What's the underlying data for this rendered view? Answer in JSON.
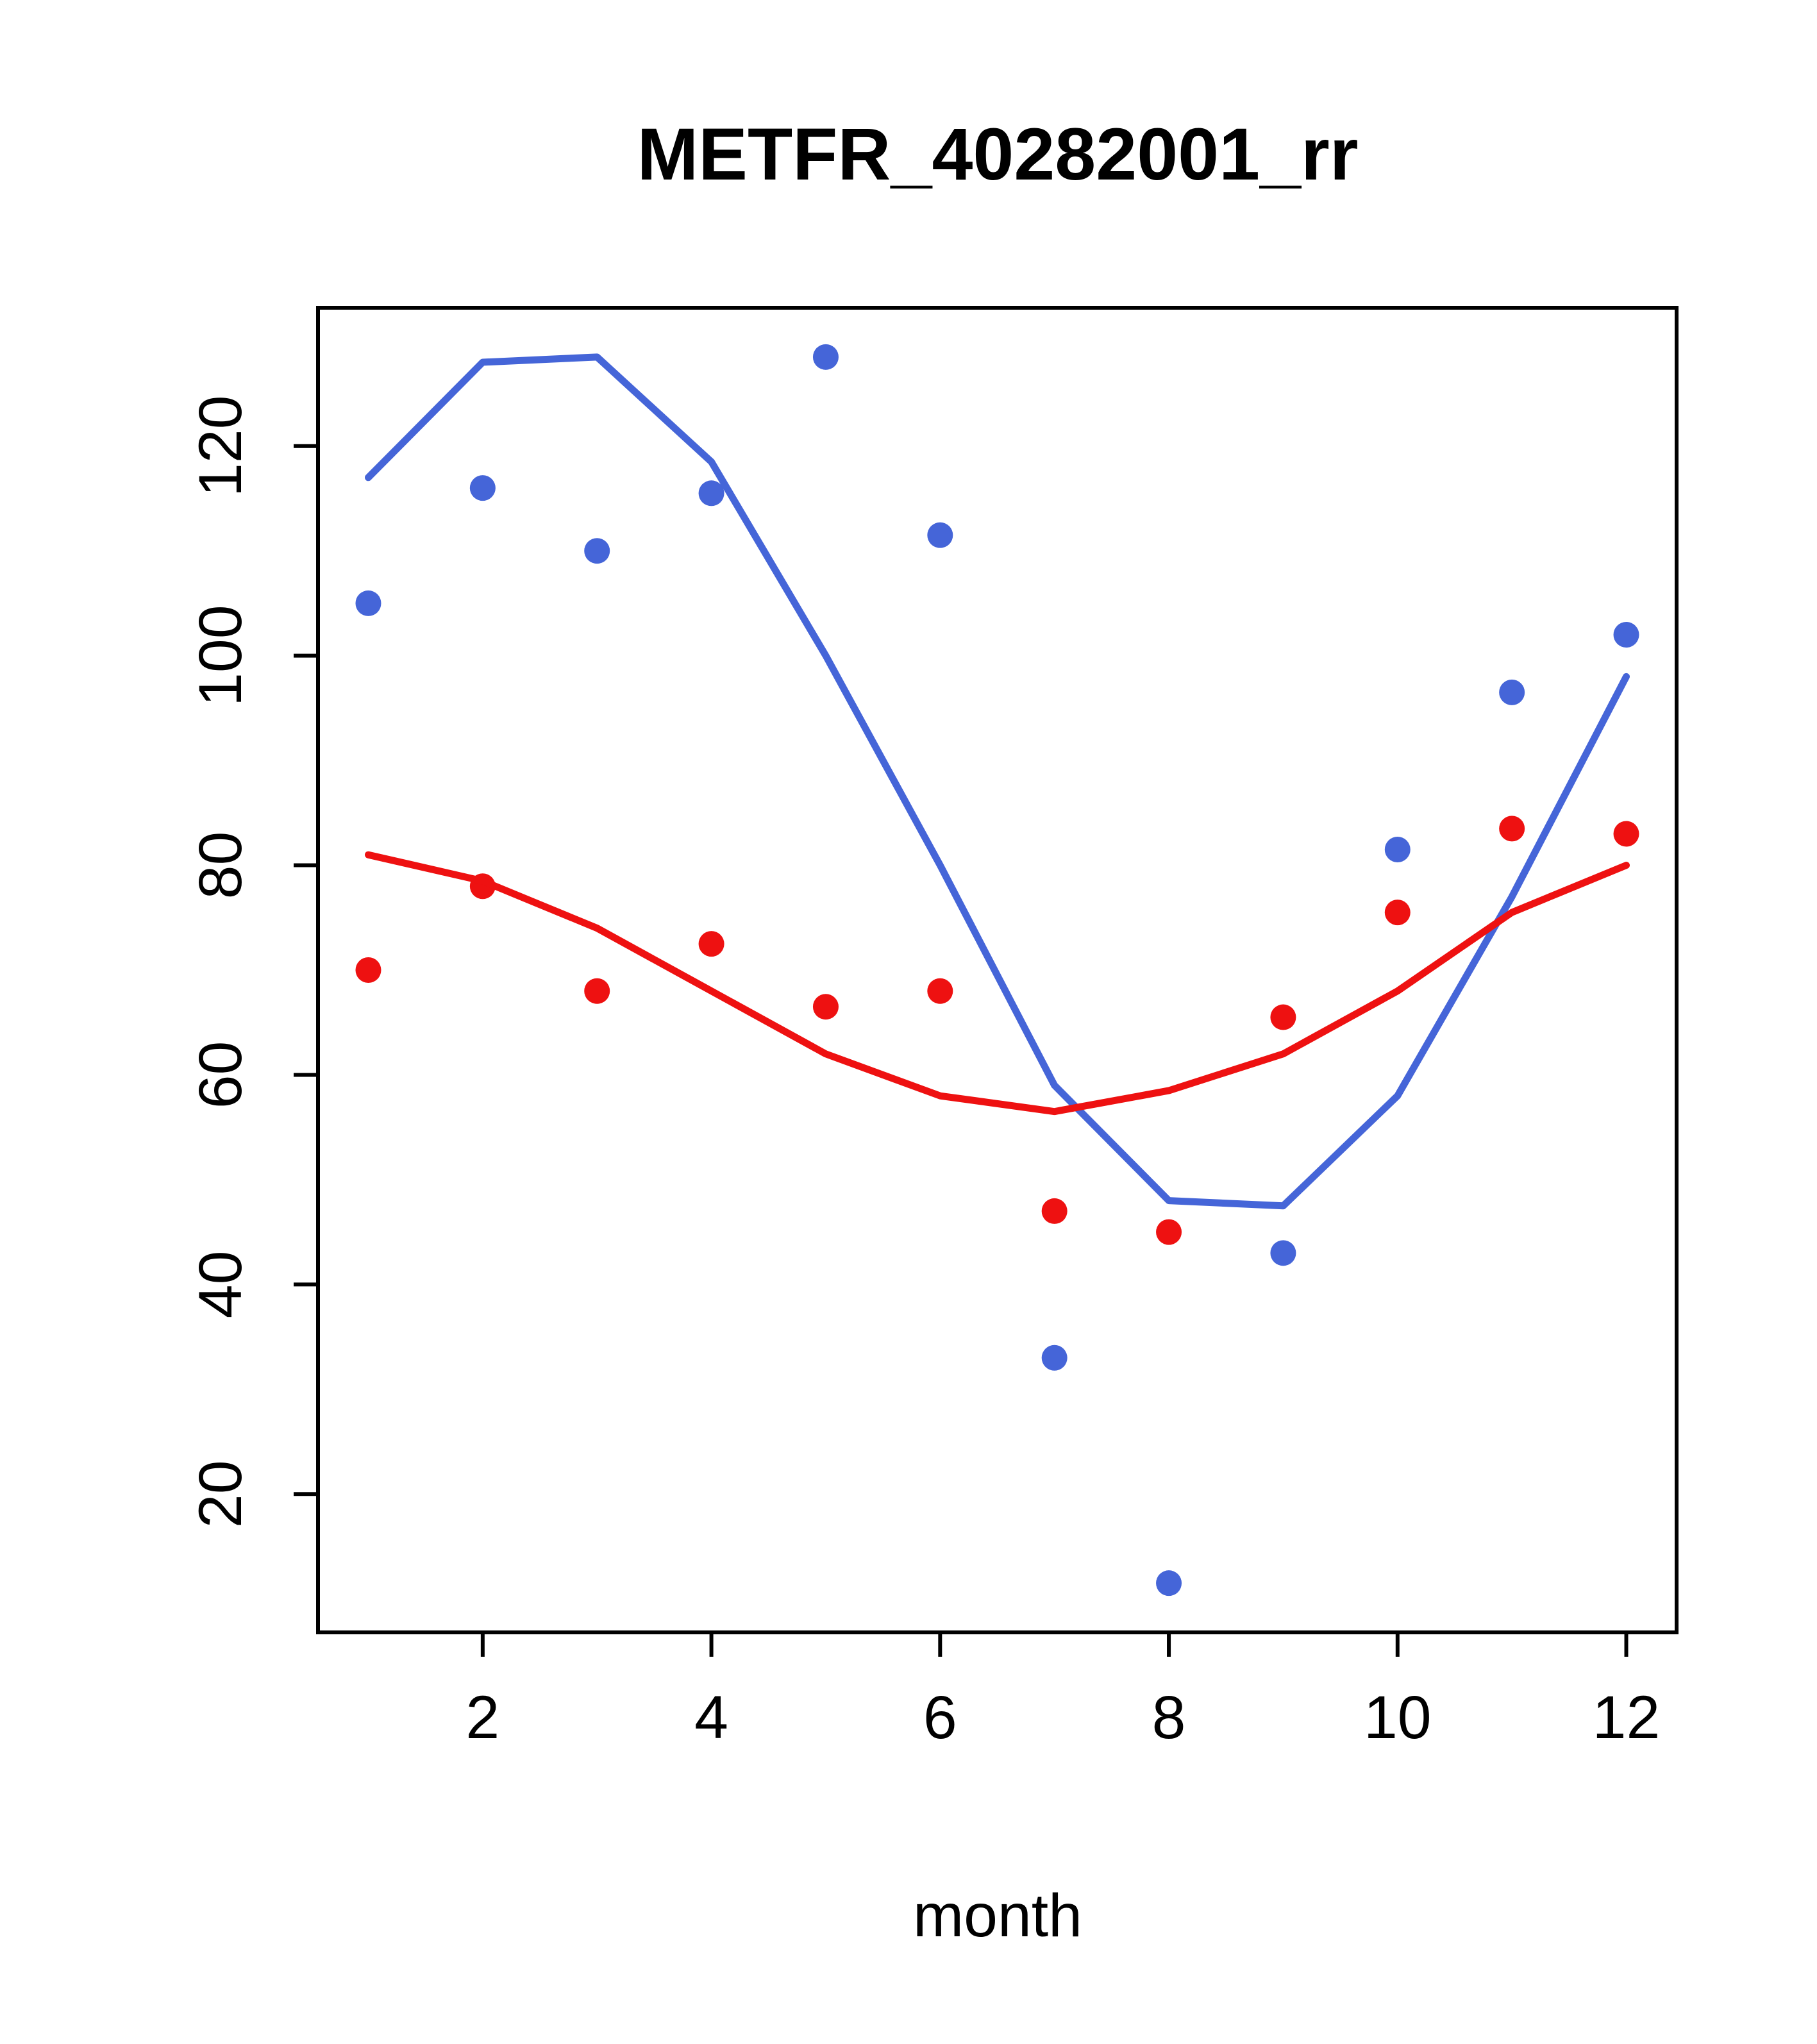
{
  "page": {
    "background_color": "#ffffff"
  },
  "chart_data": {
    "type": "scatter",
    "title": "METFR_40282001_rr",
    "xlabel": "month",
    "ylabel": "",
    "x": [
      1,
      2,
      3,
      4,
      5,
      6,
      7,
      8,
      9,
      10,
      11,
      12
    ],
    "series": [
      {
        "name": "blue-points",
        "style": "points",
        "color": "#4565d8",
        "values": [
          105,
          116,
          110,
          115.5,
          128.5,
          111.5,
          33,
          11.5,
          43,
          81.5,
          96.5,
          102
        ]
      },
      {
        "name": "blue-smooth-line",
        "style": "line",
        "color": "#4565d8",
        "values": [
          117,
          128,
          128.5,
          118.5,
          100,
          80,
          59,
          48,
          47.5,
          58,
          77,
          98
        ]
      },
      {
        "name": "red-points",
        "style": "points",
        "color": "#ee1111",
        "values": [
          70,
          78,
          68,
          72.5,
          66.5,
          68,
          47,
          45,
          65.5,
          75.5,
          83.5,
          83
        ]
      },
      {
        "name": "red-smooth-line",
        "style": "line",
        "color": "#ee1111",
        "values": [
          81,
          78.5,
          74,
          68,
          62,
          58,
          56.5,
          58.5,
          62,
          68,
          75.5,
          80
        ]
      }
    ],
    "xlim": [
      0.56,
      12.44
    ],
    "ylim": [
      6.8,
      133.2
    ],
    "x_ticks": [
      2,
      4,
      6,
      8,
      10,
      12
    ],
    "y_ticks": [
      20,
      40,
      60,
      80,
      100,
      120
    ],
    "grid": false,
    "legend": null,
    "axis_color": "#000000"
  }
}
